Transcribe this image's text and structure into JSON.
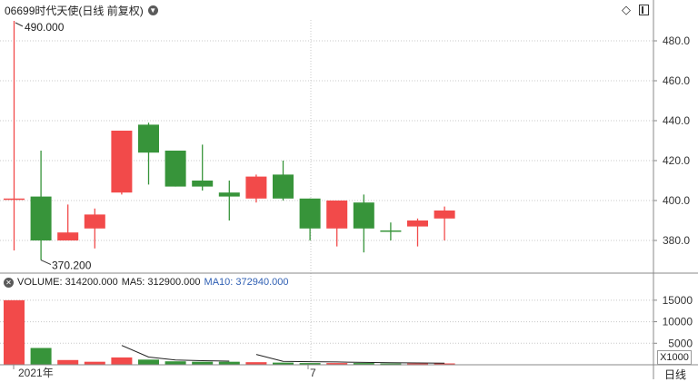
{
  "header": {
    "title": "06699时代天使(日线 前复权)",
    "dropdown_icon": "chevron-down-icon",
    "diamond_icon": "diamond-icon",
    "panel_icon": "panel-icon"
  },
  "price_annotations": {
    "high": "490.000",
    "low": "370.200"
  },
  "volume_legend": {
    "volume": "VOLUME: 314200.000",
    "ma5": "MA5: 312900.000",
    "ma10": "MA10: 372940.000",
    "close_icon": "close-icon"
  },
  "volume_scale_label": "X1000",
  "period_label": "日线",
  "x_labels": {
    "year": "2021年",
    "month": "7"
  },
  "colors": {
    "up": "#f24a4a",
    "down": "#37943a",
    "grid": "#c8c8c8",
    "ma10": "#2f5fb3"
  },
  "chart_data": [
    {
      "type": "candlestick",
      "title": "06699时代天使(日线 前复权)",
      "y_ticks": [
        380,
        400,
        420,
        440,
        460,
        480
      ],
      "ylim": [
        370,
        490
      ],
      "x_ticks": [
        "2021年",
        "7"
      ],
      "annotations": [
        "490.000",
        "370.200"
      ],
      "candles": [
        {
          "open": 401,
          "close": 401,
          "high": 490,
          "low": 375,
          "dir": "up"
        },
        {
          "open": 402,
          "close": 380,
          "high": 425,
          "low": 370.2,
          "dir": "down"
        },
        {
          "open": 380,
          "close": 384,
          "high": 398,
          "low": 380,
          "dir": "up"
        },
        {
          "open": 386,
          "close": 393,
          "high": 396,
          "low": 376,
          "dir": "up"
        },
        {
          "open": 404,
          "close": 435,
          "high": 435,
          "low": 403,
          "dir": "up"
        },
        {
          "open": 438,
          "close": 424,
          "high": 439,
          "low": 408,
          "dir": "down"
        },
        {
          "open": 425,
          "close": 407,
          "high": 425,
          "low": 407,
          "dir": "down"
        },
        {
          "open": 410,
          "close": 407,
          "high": 428,
          "low": 405,
          "dir": "down"
        },
        {
          "open": 404,
          "close": 402,
          "high": 410,
          "low": 390,
          "dir": "down"
        },
        {
          "open": 401,
          "close": 412,
          "high": 413,
          "low": 399,
          "dir": "up"
        },
        {
          "open": 413,
          "close": 401,
          "high": 420,
          "low": 400,
          "dir": "down"
        },
        {
          "open": 401,
          "close": 386,
          "high": 401,
          "low": 380,
          "dir": "down"
        },
        {
          "open": 386,
          "close": 400,
          "high": 400,
          "low": 377,
          "dir": "up"
        },
        {
          "open": 399,
          "close": 386,
          "high": 403,
          "low": 374,
          "dir": "down"
        },
        {
          "open": 385,
          "close": 385,
          "high": 389,
          "low": 380,
          "dir": "down"
        },
        {
          "open": 387,
          "close": 390,
          "high": 391,
          "low": 377,
          "dir": "up"
        },
        {
          "open": 391,
          "close": 395,
          "high": 397,
          "low": 380,
          "dir": "up"
        }
      ]
    },
    {
      "type": "bar",
      "title": "VOLUME",
      "y_ticks": [
        5000,
        10000,
        15000
      ],
      "ylim": [
        0,
        17500
      ],
      "unit": "X1000",
      "volumes": [
        15000,
        3900,
        1100,
        700,
        1700,
        1200,
        800,
        700,
        700,
        600,
        500,
        400,
        400,
        400,
        300,
        300,
        314.2
      ],
      "ma5_points": [
        {
          "index": 4,
          "value": 4500
        },
        {
          "index": 5,
          "value": 1800
        },
        {
          "index": 6,
          "value": 1100
        },
        {
          "index": 7,
          "value": 950
        },
        {
          "index": 8,
          "value": 850
        }
      ],
      "ma10_points": [
        {
          "index": 9,
          "value": 2400
        },
        {
          "index": 10,
          "value": 800
        },
        {
          "index": 11,
          "value": 700
        },
        {
          "index": 12,
          "value": 650
        },
        {
          "index": 13,
          "value": 560
        },
        {
          "index": 14,
          "value": 480
        },
        {
          "index": 15,
          "value": 420
        },
        {
          "index": 16,
          "value": 372.94
        }
      ]
    }
  ]
}
